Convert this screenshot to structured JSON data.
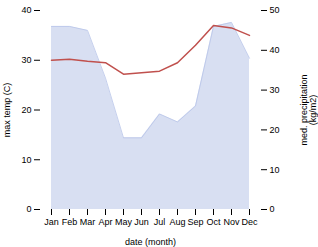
{
  "chart_data": {
    "type": "line",
    "categories": [
      "Jan",
      "Feb",
      "Mar",
      "Apr",
      "May",
      "Jun",
      "Jul",
      "Aug",
      "Sep",
      "Oct",
      "Nov",
      "Dec"
    ],
    "xlabel": "date (month)",
    "ylabel": "max temp (C)",
    "y2label": "med. precipitation\n(kg/m2)",
    "ylim": [
      0,
      40
    ],
    "yticks": [
      0,
      10,
      20,
      30,
      40
    ],
    "y2lim": [
      0,
      50
    ],
    "y2ticks": [
      0,
      10,
      20,
      30,
      40,
      50
    ],
    "series": [
      {
        "type": "area",
        "axis": "y2",
        "color": "#b8c4e8",
        "values": [
          46,
          46,
          45,
          33,
          18,
          18,
          24,
          22,
          26,
          46,
          47,
          38
        ]
      },
      {
        "type": "line",
        "color": "#c0504d",
        "values": [
          30.0,
          30.2,
          29.8,
          29.5,
          27.2,
          27.5,
          27.8,
          29.5,
          33.0,
          37.0,
          36.5,
          35.0
        ]
      }
    ]
  }
}
